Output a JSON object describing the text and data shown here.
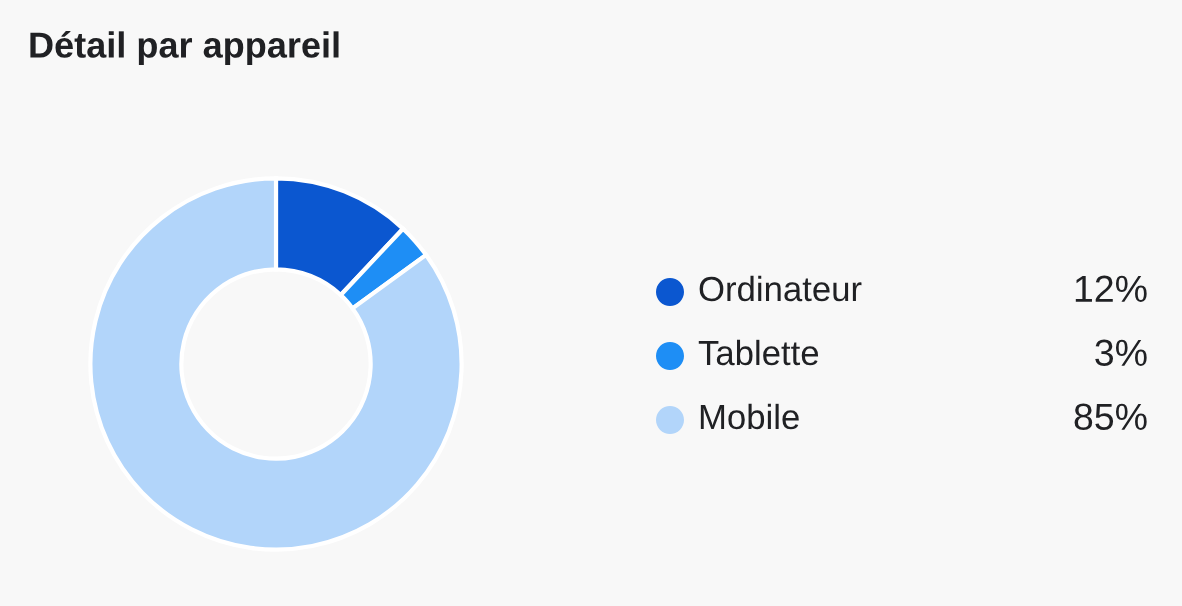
{
  "chart_data": {
    "type": "donut",
    "title": "Détail par appareil",
    "categories": [
      "Ordinateur",
      "Tablette",
      "Mobile"
    ],
    "values": [
      12,
      3,
      85
    ],
    "colors": [
      "#0b57d0",
      "#1e8ef5",
      "#b2d5fa"
    ],
    "value_labels": [
      "12%",
      "3%",
      "85%"
    ],
    "legend": "right"
  }
}
